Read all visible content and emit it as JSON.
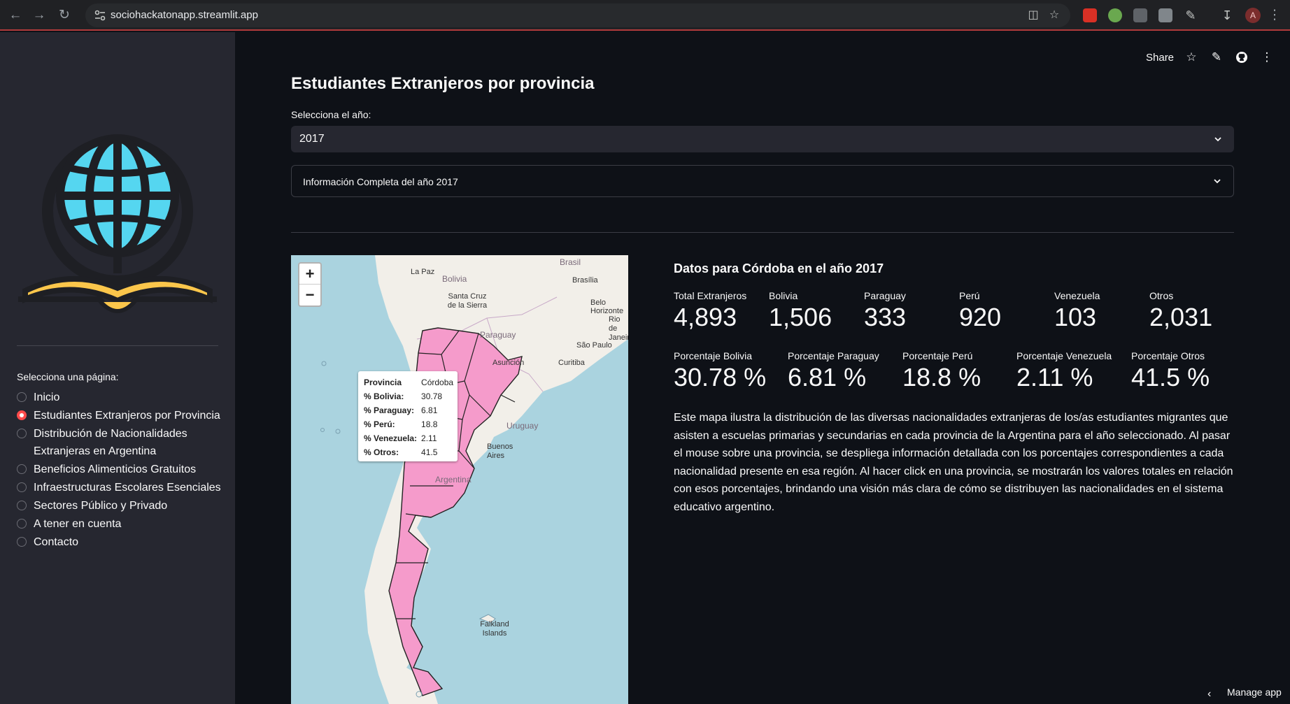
{
  "browser": {
    "url": "sociohackatonapp.streamlit.app",
    "profile_initial": "A"
  },
  "sidebar": {
    "nav_label": "Selecciona una página:",
    "items": [
      {
        "label": "Inicio",
        "selected": false
      },
      {
        "label": "Estudiantes Extranjeros por Provincia",
        "selected": true
      },
      {
        "label": "Distribución de Nacionalidades Extranjeras en Argentina",
        "selected": false
      },
      {
        "label": "Beneficios Alimenticios Gratuitos",
        "selected": false
      },
      {
        "label": "Infraestructuras Escolares Esenciales",
        "selected": false
      },
      {
        "label": "Sectores Público y Privado",
        "selected": false
      },
      {
        "label": "A tener en cuenta",
        "selected": false
      },
      {
        "label": "Contacto",
        "selected": false
      }
    ]
  },
  "header": {
    "share_label": "Share"
  },
  "main": {
    "title": "Estudiantes Extranjeros por provincia",
    "select_label": "Selecciona el año:",
    "select_value": "2017",
    "expander_label": "Información Completa del año 2017"
  },
  "map": {
    "zoom_in": "+",
    "zoom_out": "−",
    "labels": {
      "la_paz": "La Paz",
      "bolivia": "Bolivia",
      "brasil": "Brasil",
      "brasilia": "Brasília",
      "santa_cruz": "Santa Cruz de la Sierra",
      "belo_horizonte": "Belo Horizonte",
      "rio": "Rio de Janeiro",
      "sao_paulo": "São Paulo",
      "paraguay": "Paraguay",
      "asuncion": "Asunción",
      "curitiba": "Curitiba",
      "uruguay": "Uruguay",
      "buenos_aires": "Buenos Aires",
      "argentina": "Argentina",
      "falkland": "Falkland Islands"
    },
    "tooltip": {
      "rows": [
        {
          "k": "Provincia",
          "v": "Córdoba"
        },
        {
          "k": "% Bolivia:",
          "v": "30.78"
        },
        {
          "k": "% Paraguay:",
          "v": "6.81"
        },
        {
          "k": "% Perú:",
          "v": "18.8"
        },
        {
          "k": "% Venezuela:",
          "v": "2.11"
        },
        {
          "k": "% Otros:",
          "v": "41.5"
        }
      ]
    },
    "colors": {
      "water": "#aad3df",
      "land": "#f2efe9",
      "province": "#f59bcb"
    }
  },
  "data_panel": {
    "title": "Datos para Córdoba en el año 2017",
    "totals": [
      {
        "label": "Total Extranjeros",
        "value": "4,893"
      },
      {
        "label": "Bolivia",
        "value": "1,506"
      },
      {
        "label": "Paraguay",
        "value": "333"
      },
      {
        "label": "Perú",
        "value": "920"
      },
      {
        "label": "Venezuela",
        "value": "103"
      },
      {
        "label": "Otros",
        "value": "2,031"
      }
    ],
    "percentages": [
      {
        "label": "Porcentaje Bolivia",
        "value": "30.78 %"
      },
      {
        "label": "Porcentaje Paraguay",
        "value": "6.81 %"
      },
      {
        "label": "Porcentaje Perú",
        "value": "18.8 %"
      },
      {
        "label": "Porcentaje Venezuela",
        "value": "2.11 %"
      },
      {
        "label": "Porcentaje Otros",
        "value": "41.5 %"
      }
    ],
    "description": "Este mapa ilustra la distribución de las diversas nacionalidades extranjeras de los/as estudiantes migrantes que asisten a escuelas primarias y secundarias en cada provincia de la Argentina para el año seleccionado. Al pasar el mouse sobre una provincia, se despliega información detallada con los porcentajes correspondientes a cada nacionalidad presente en esa región. Al hacer click en una provincia, se mostrarán los valores totales en relación con esos porcentajes, brindando una visión más clara de cómo se distribuyen las nacionalidades en el sistema educativo argentino."
  },
  "footer": {
    "manage_label": "Manage app"
  },
  "theme": {
    "accent": "#ff4b4b",
    "background": "#0e1117",
    "sidebar": "#262730"
  }
}
